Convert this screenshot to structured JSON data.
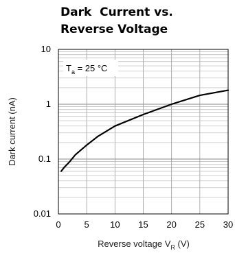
{
  "chart_data": {
    "type": "line",
    "title_line1": "Dark  Current vs.",
    "title_line2": "Reverse Voltage",
    "xlabel": "Reverse voltage V",
    "xlabel_sub": "R",
    "xlabel_unit": " (V)",
    "ylabel": "Dark current (nA)",
    "annotation": {
      "main": "T",
      "sub": "a",
      "rest": " = 25 °C"
    },
    "x_scale": "linear",
    "y_scale": "log",
    "xlim": [
      0,
      30
    ],
    "ylim": [
      0.01,
      10
    ],
    "x_ticks": [
      "0",
      "5",
      "10",
      "15",
      "20",
      "25",
      "30"
    ],
    "y_ticks": [
      "0.01",
      "0.1",
      "1",
      "10"
    ],
    "grid": true,
    "series": [
      {
        "x": [
          0.5,
          1,
          2,
          3,
          5,
          7,
          10,
          15,
          20,
          25,
          30
        ],
        "values": [
          0.06,
          0.07,
          0.09,
          0.12,
          0.18,
          0.26,
          0.4,
          0.65,
          1.0,
          1.45,
          1.8
        ]
      }
    ]
  }
}
